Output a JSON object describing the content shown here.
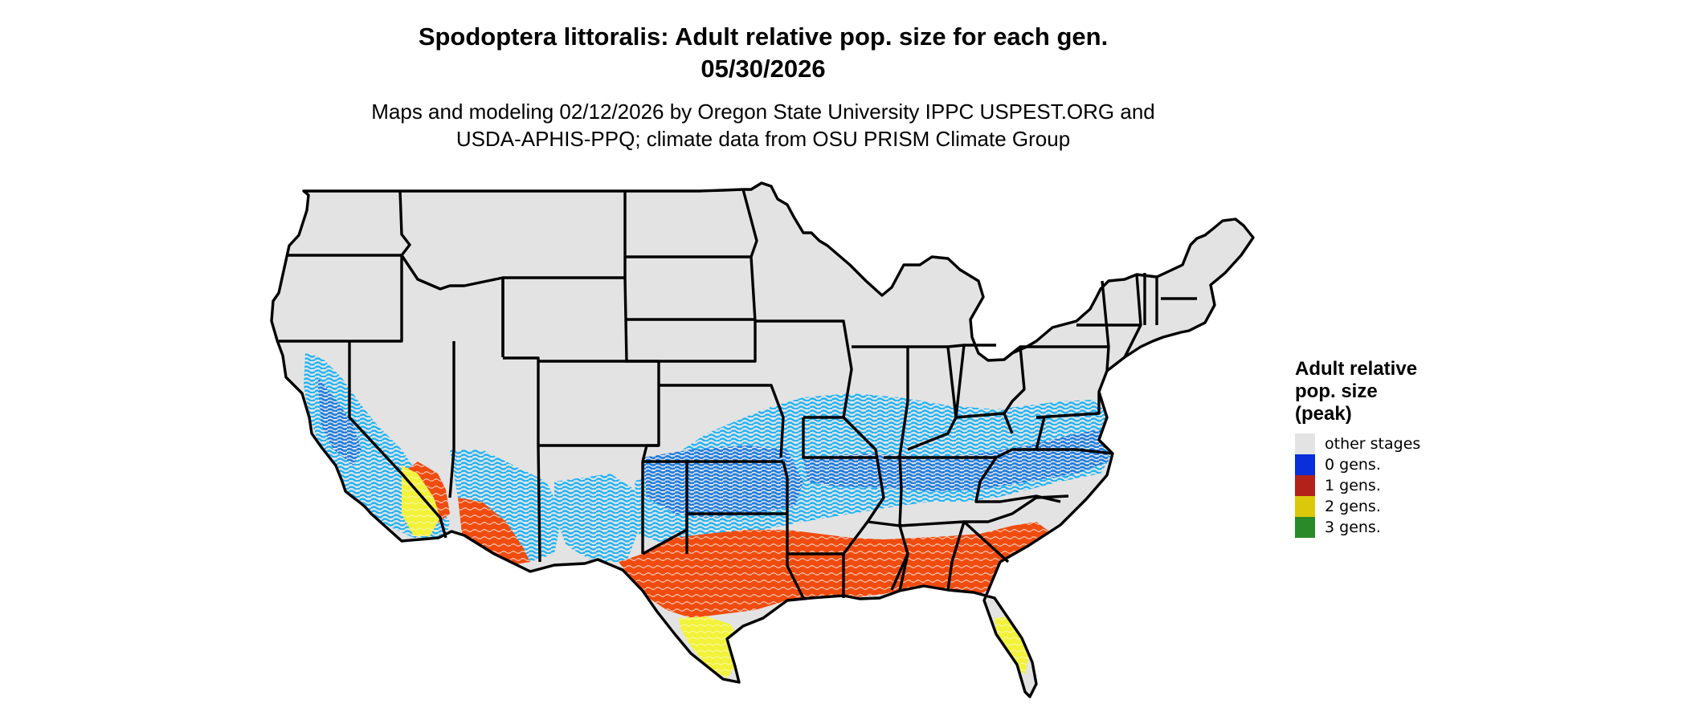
{
  "header": {
    "title_line1": "Spodoptera littoralis: Adult relative pop. size for each gen.",
    "title_line2": "05/30/2026",
    "subtitle_line1": "Maps and modeling 02/12/2026 by Oregon State University IPPC USPEST.ORG and",
    "subtitle_line2": "USDA-APHIS-PPQ; climate data from OSU PRISM Climate Group"
  },
  "legend": {
    "title_lines": [
      "Adult relative",
      "pop. size",
      "(peak)"
    ],
    "items": [
      {
        "label": "other stages",
        "color": "#e3e3e3"
      },
      {
        "label": "0 gens.",
        "color": "#0a2ed8"
      },
      {
        "label": "1 gens.",
        "color": "#b3221a"
      },
      {
        "label": "2 gens.",
        "color": "#dcc80a"
      },
      {
        "label": "3 gens.",
        "color": "#2a8a2a"
      }
    ]
  },
  "map": {
    "background_color": "#e3e3e3",
    "border_color": "#000000",
    "pattern_colors": {
      "light_blue": "#1eb4f5",
      "mid_blue": "#1e7ee0",
      "orange_red": "#f04c10",
      "yellow": "#f2f23a",
      "green": "#2aa02a"
    }
  }
}
